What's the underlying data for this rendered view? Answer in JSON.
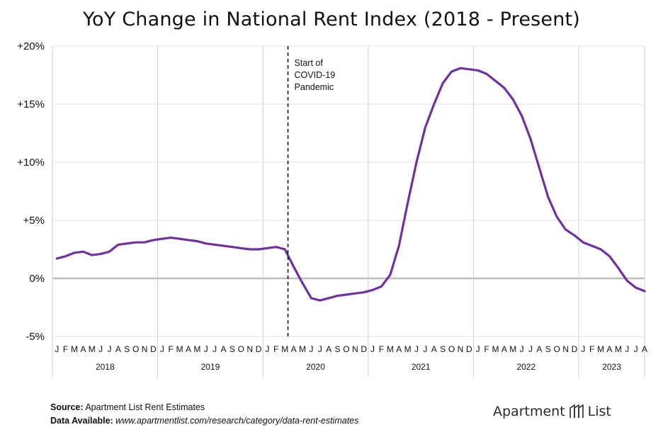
{
  "chart_data": {
    "type": "line",
    "title": "YoY Change in National Rent Index (2018 - Present)",
    "xlabel": "",
    "ylabel": "",
    "ylim": [
      -5,
      20
    ],
    "yticks": [
      20,
      15,
      10,
      5,
      0,
      -5
    ],
    "ytick_labels": [
      "+20%",
      "+15%",
      "+10%",
      "+5%",
      "0%",
      "-5%"
    ],
    "month_labels": [
      "J",
      "F",
      "M",
      "A",
      "M",
      "J",
      "J",
      "A",
      "S",
      "O",
      "N",
      "D"
    ],
    "year_labels": [
      "2018",
      "2019",
      "2020",
      "2021",
      "2022",
      "2023"
    ],
    "grid": true,
    "series": [
      {
        "color": "#7030A0",
        "x": [
          "2018-01",
          "2018-02",
          "2018-03",
          "2018-04",
          "2018-05",
          "2018-06",
          "2018-07",
          "2018-08",
          "2018-09",
          "2018-10",
          "2018-11",
          "2018-12",
          "2019-01",
          "2019-02",
          "2019-03",
          "2019-04",
          "2019-05",
          "2019-06",
          "2019-07",
          "2019-08",
          "2019-09",
          "2019-10",
          "2019-11",
          "2019-12",
          "2020-01",
          "2020-02",
          "2020-03",
          "2020-04",
          "2020-05",
          "2020-06",
          "2020-07",
          "2020-08",
          "2020-09",
          "2020-10",
          "2020-11",
          "2020-12",
          "2021-01",
          "2021-02",
          "2021-03",
          "2021-04",
          "2021-05",
          "2021-06",
          "2021-07",
          "2021-08",
          "2021-09",
          "2021-10",
          "2021-11",
          "2021-12",
          "2022-01",
          "2022-02",
          "2022-03",
          "2022-04",
          "2022-05",
          "2022-06",
          "2022-07",
          "2022-08",
          "2022-09",
          "2022-10",
          "2022-11",
          "2022-12",
          "2023-01",
          "2023-02",
          "2023-03",
          "2023-04",
          "2023-05",
          "2023-06",
          "2023-07",
          "2023-08"
        ],
        "values": [
          1.7,
          1.9,
          2.2,
          2.3,
          2.0,
          2.1,
          2.3,
          2.9,
          3.0,
          3.1,
          3.1,
          3.3,
          3.4,
          3.5,
          3.4,
          3.3,
          3.2,
          3.0,
          2.9,
          2.8,
          2.7,
          2.6,
          2.5,
          2.5,
          2.6,
          2.7,
          2.5,
          1.0,
          -0.4,
          -1.7,
          -1.9,
          -1.7,
          -1.5,
          -1.4,
          -1.3,
          -1.2,
          -1.0,
          -0.7,
          0.3,
          2.8,
          6.5,
          10.0,
          13.0,
          15.0,
          16.8,
          17.8,
          18.1,
          18.0,
          17.9,
          17.6,
          17.0,
          16.4,
          15.4,
          14.0,
          12.0,
          9.5,
          7.0,
          5.3,
          4.2,
          3.7,
          3.1,
          2.8,
          2.5,
          1.9,
          0.9,
          -0.2,
          -0.8,
          -1.1
        ]
      }
    ],
    "annotation": {
      "x": "2020-03",
      "lines": [
        "Start of",
        "COVID-19",
        "Pandemic"
      ]
    }
  },
  "footer": {
    "source_label": "Source:",
    "source_text": " Apartment List Rent Estimates",
    "data_label": "Data Available:",
    "data_text": " www.apartmentlist.com/research/category/data-rent-estimates"
  },
  "brand": {
    "name_left": "Apartment",
    "name_right": "List",
    "icon": "apartment-list-logo-icon",
    "color": "#2a2a2a"
  }
}
